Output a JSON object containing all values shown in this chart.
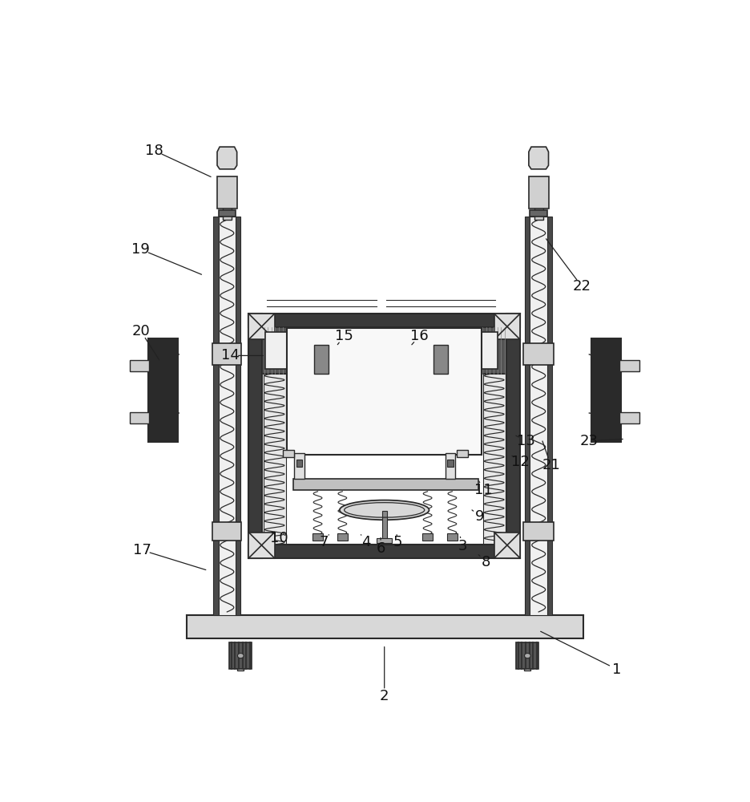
{
  "bg_color": "#ffffff",
  "lc": "#2a2a2a",
  "dark_fc": "#3a3a3a",
  "mid_fc": "#888888",
  "light_fc": "#e8e8e8",
  "hatch_fc": "#aaaaaa",
  "white_fc": "#f5f5f5",
  "annotations": [
    [
      "18",
      95,
      88,
      190,
      132
    ],
    [
      "19",
      73,
      248,
      175,
      290
    ],
    [
      "20",
      73,
      380,
      105,
      430
    ],
    [
      "14",
      218,
      420,
      275,
      420
    ],
    [
      "15",
      403,
      388,
      390,
      405
    ],
    [
      "16",
      525,
      388,
      510,
      405
    ],
    [
      "17",
      75,
      735,
      182,
      768
    ],
    [
      "1",
      845,
      928,
      718,
      865
    ],
    [
      "2",
      468,
      972,
      468,
      888
    ],
    [
      "3",
      595,
      728,
      590,
      710
    ],
    [
      "4",
      438,
      722,
      430,
      710
    ],
    [
      "5",
      490,
      722,
      488,
      710
    ],
    [
      "6",
      462,
      732,
      462,
      715
    ],
    [
      "7",
      370,
      722,
      378,
      710
    ],
    [
      "8",
      633,
      754,
      618,
      740
    ],
    [
      "9",
      623,
      680,
      610,
      670
    ],
    [
      "10",
      297,
      715,
      308,
      710
    ],
    [
      "11",
      628,
      638,
      620,
      620
    ],
    [
      "12",
      688,
      592,
      672,
      580
    ],
    [
      "13",
      698,
      558,
      678,
      548
    ],
    [
      "21",
      738,
      598,
      723,
      555
    ],
    [
      "22",
      788,
      308,
      728,
      228
    ],
    [
      "23",
      800,
      558,
      858,
      555
    ]
  ]
}
